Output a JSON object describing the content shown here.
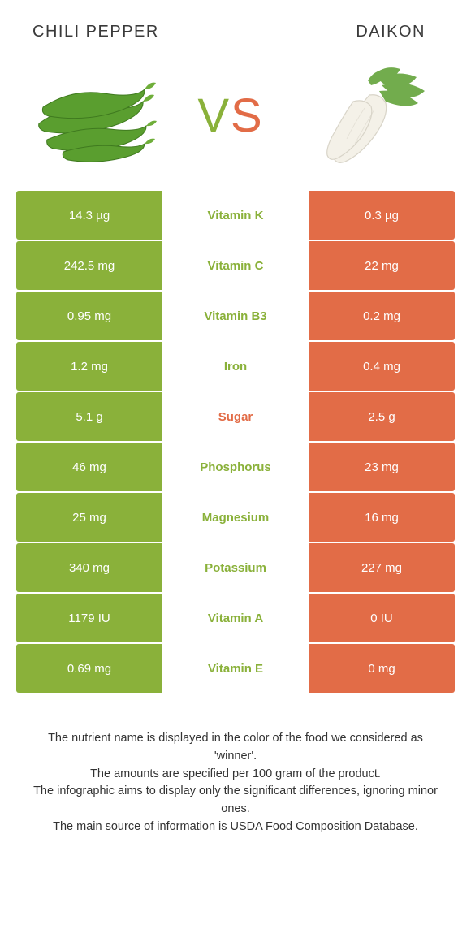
{
  "colors": {
    "green": "#8ab13a",
    "orange": "#e26c47",
    "white": "#ffffff",
    "text": "#333333"
  },
  "header": {
    "left": "CHILI PEPPER",
    "right": "DAIKON"
  },
  "vs": {
    "v": "V",
    "s": "S"
  },
  "table": {
    "rows": [
      {
        "left": "14.3 µg",
        "label": "Vitamin K",
        "right": "0.3 µg",
        "winner": "left"
      },
      {
        "left": "242.5 mg",
        "label": "Vitamin C",
        "right": "22 mg",
        "winner": "left"
      },
      {
        "left": "0.95 mg",
        "label": "Vitamin B3",
        "right": "0.2 mg",
        "winner": "left"
      },
      {
        "left": "1.2 mg",
        "label": "Iron",
        "right": "0.4 mg",
        "winner": "left"
      },
      {
        "left": "5.1 g",
        "label": "Sugar",
        "right": "2.5 g",
        "winner": "right"
      },
      {
        "left": "46 mg",
        "label": "Phosphorus",
        "right": "23 mg",
        "winner": "left"
      },
      {
        "left": "25 mg",
        "label": "Magnesium",
        "right": "16 mg",
        "winner": "left"
      },
      {
        "left": "340 mg",
        "label": "Potassium",
        "right": "227 mg",
        "winner": "left"
      },
      {
        "left": "1179 IU",
        "label": "Vitamin A",
        "right": "0 IU",
        "winner": "left"
      },
      {
        "left": "0.69 mg",
        "label": "Vitamin E",
        "right": "0 mg",
        "winner": "left"
      }
    ]
  },
  "footnote": {
    "l1": "The nutrient name is displayed in the color of the food we considered as 'winner'.",
    "l2": "The amounts are specified per 100 gram of the product.",
    "l3": "The infographic aims to display only the significant differences, ignoring minor ones.",
    "l4": "The main source of information is USDA Food Composition Database."
  }
}
